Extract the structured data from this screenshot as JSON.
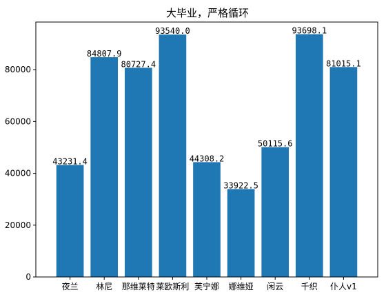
{
  "chart_data": {
    "type": "bar",
    "title": "大毕业，严格循环",
    "xlabel": "",
    "ylabel": "",
    "categories": [
      "夜兰",
      "林尼",
      "那维莱特",
      "莱欧斯利",
      "芙宁娜",
      "娜维娅",
      "闲云",
      "千织",
      "仆人v1"
    ],
    "values": [
      43231.4,
      84807.9,
      80727.4,
      93540.0,
      44308.2,
      33922.5,
      50115.6,
      93698.1,
      81015.1
    ],
    "value_labels": [
      "43231.4",
      "84807.9",
      "80727.4",
      "93540.0",
      "44308.2",
      "33922.5",
      "50115.6",
      "93698.1",
      "81015.1"
    ],
    "ylim": [
      0,
      98383
    ],
    "yticks": [
      0,
      20000,
      40000,
      60000,
      80000
    ],
    "bar_color": "#1f77b4",
    "grid": false,
    "legend": "none"
  }
}
